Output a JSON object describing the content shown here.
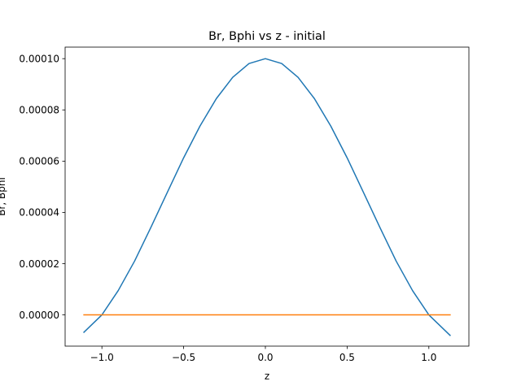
{
  "chart_data": {
    "type": "line",
    "title": "Br, Bphi vs z - initial",
    "xlabel": "z",
    "ylabel": "Br, Bphi",
    "xlim": [
      -1.225,
      1.245
    ],
    "ylim": [
      -1.22e-05,
      0.0001045
    ],
    "xticks": [
      -1.0,
      -0.5,
      0.0,
      0.5,
      1.0
    ],
    "xtick_labels": [
      "−1.0",
      "−0.5",
      "0.0",
      "0.5",
      "1.0"
    ],
    "yticks": [
      0.0,
      2e-05,
      4e-05,
      6e-05,
      8e-05,
      0.0001
    ],
    "ytick_labels": [
      "0.00000",
      "0.00002",
      "0.00004",
      "0.00006",
      "0.00008",
      "0.00010"
    ],
    "grid": false,
    "legend": "none",
    "series": [
      {
        "color": "#1f77b4",
        "x": [
          -1.11,
          -1.0,
          -0.9,
          -0.8,
          -0.7,
          -0.6,
          -0.5,
          -0.4,
          -0.3,
          -0.2,
          -0.1,
          0.0,
          0.1,
          0.2,
          0.3,
          0.4,
          0.5,
          0.6,
          0.7,
          0.8,
          0.9,
          1.0,
          1.13
        ],
        "y": [
          -6.8e-06,
          0.0,
          9.5e-06,
          2.1e-05,
          3.42e-05,
          4.78e-05,
          6.13e-05,
          7.37e-05,
          8.44e-05,
          9.27e-05,
          9.81e-05,
          0.0001,
          9.81e-05,
          9.27e-05,
          8.44e-05,
          7.37e-05,
          6.13e-05,
          4.78e-05,
          3.42e-05,
          2.1e-05,
          9.5e-06,
          0.0,
          -8e-06
        ]
      },
      {
        "color": "#ff7f0e",
        "x": [
          -1.11,
          1.13
        ],
        "y": [
          0.0,
          0.0
        ]
      }
    ]
  }
}
